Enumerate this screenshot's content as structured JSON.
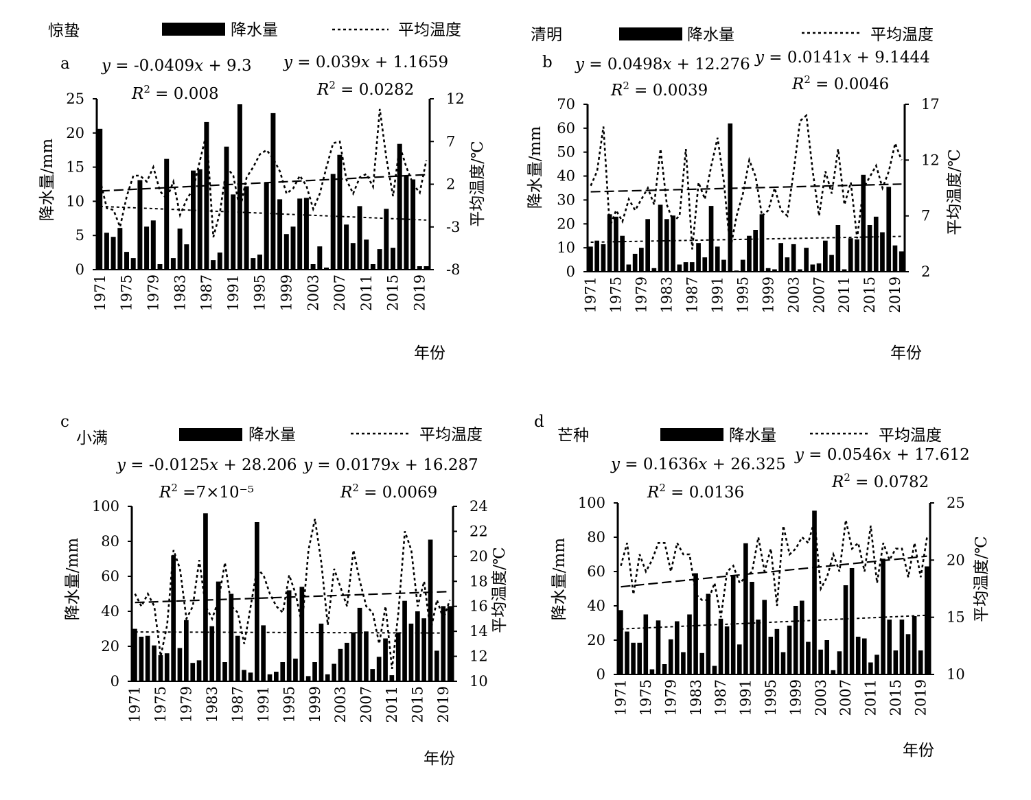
{
  "chart_data": [
    {
      "type": "bar+line",
      "panel_letter": "a",
      "title": "惊蛰",
      "legend": {
        "bar": "降水量",
        "line": "平均温度"
      },
      "xlabel": "年份",
      "ylabel_left": "降水量/mm",
      "ylabel_right": "平均温度/℃",
      "left_ticks": [
        "0",
        "5",
        "10",
        "15",
        "20",
        "25"
      ],
      "right_ticks": [
        "-8",
        "-3",
        "2",
        "7",
        "12"
      ],
      "x_ticks": [
        "1971",
        "1975",
        "1979",
        "1983",
        "1987",
        "1991",
        "1995",
        "1999",
        "2003",
        "2007",
        "2011",
        "2015",
        "2019"
      ],
      "equations": {
        "precip": {
          "line1": "y = -0.0409x + 9.3",
          "line2": "R² = 0.008"
        },
        "temp": {
          "line1": "y = 0.039x + 1.1659",
          "line2": "R² = 0.0282"
        }
      },
      "ylim_left": [
        0,
        25
      ],
      "ylim_right": [
        -8,
        12
      ],
      "years": [
        1971,
        2020
      ],
      "precip_trend": {
        "slope": -0.0409,
        "intercept": 9.3
      },
      "temp_trend": {
        "slope": 0.039,
        "intercept": 1.1659
      },
      "precipitation": [
        20.6,
        5.4,
        4.8,
        6.1,
        2.6,
        1.7,
        13.1,
        6.3,
        7.2,
        0.8,
        16.2,
        1.7,
        6.0,
        3.7,
        14.5,
        14.7,
        21.6,
        1.4,
        2.5,
        18.0,
        11.0,
        24.2,
        12.2,
        1.7,
        2.2,
        12.8,
        22.9,
        10.3,
        5.2,
        6.3,
        10.4,
        10.5,
        0.8,
        3.4,
        0.3,
        14.0,
        16.8,
        6.6,
        3.9,
        9.3,
        4.4,
        0.8,
        3.0,
        8.9,
        3.2,
        18.4,
        13.7,
        13.2,
        0.5,
        0.5
      ],
      "temperature": [
        2.5,
        -0.8,
        -1.0,
        -3.0,
        0.6,
        3.0,
        3.0,
        2.3,
        4.0,
        1.2,
        0.3,
        2.3,
        -1.6,
        0.2,
        1.5,
        4.8,
        8.0,
        -4.2,
        -1.3,
        4.0,
        3.0,
        -1.0,
        2.8,
        4.0,
        5.5,
        6.0,
        5.0,
        3.5,
        0.9,
        1.5,
        3.0,
        1.8,
        -0.9,
        0.9,
        4.0,
        6.8,
        7.0,
        2.5,
        0.9,
        2.8,
        3.2,
        1.7,
        10.8,
        5.0,
        0.6,
        6.5,
        4.0,
        2.0,
        1.0,
        4.8
      ]
    },
    {
      "type": "bar+line",
      "panel_letter": "b",
      "title": "清明",
      "legend": {
        "bar": "降水量",
        "line": "平均温度"
      },
      "xlabel": "年份",
      "ylabel_left": "降水量/mm",
      "ylabel_right": "平均温度/℃",
      "left_ticks": [
        "0",
        "10",
        "20",
        "30",
        "40",
        "50",
        "60",
        "70"
      ],
      "right_ticks": [
        "2",
        "7",
        "12",
        "17"
      ],
      "x_ticks": [
        "1971",
        "1975",
        "1979",
        "1983",
        "1987",
        "1991",
        "1995",
        "1999",
        "2003",
        "2007",
        "2011",
        "2015",
        "2019"
      ],
      "equations": {
        "precip": {
          "line1": "y = 0.0498x + 12.276",
          "line2": "R² = 0.0039"
        },
        "temp": {
          "line1": "y = 0.0141x + 9.1444",
          "line2": "R² = 0.0046"
        }
      },
      "ylim_left": [
        0,
        70
      ],
      "ylim_right": [
        2,
        17
      ],
      "years": [
        1971,
        2020
      ],
      "precip_trend": {
        "slope": 0.0498,
        "intercept": 12.276
      },
      "temp_trend": {
        "slope": 0.0141,
        "intercept": 9.1444
      },
      "precipitation": [
        10.5,
        13.0,
        11.5,
        24.0,
        23.0,
        15.0,
        3.0,
        7.5,
        10.0,
        22.0,
        1.5,
        28.0,
        22.0,
        23.5,
        3.0,
        4.0,
        4.0,
        12.0,
        6.0,
        27.5,
        10.5,
        5.0,
        62.0,
        0.5,
        5.0,
        15.0,
        17.5,
        24.0,
        1.5,
        1.0,
        12.0,
        6.0,
        11.5,
        1.0,
        10.0,
        3.0,
        3.5,
        13.0,
        7.0,
        19.5,
        1.0,
        14.0,
        13.5,
        40.5,
        19.5,
        23.0,
        16.5,
        35.5,
        11.0,
        8.5
      ],
      "temperature": [
        9.7,
        11.0,
        15.0,
        6.0,
        7.5,
        6.5,
        8.5,
        7.5,
        8.5,
        9.5,
        8.0,
        13.0,
        8.0,
        6.5,
        7.0,
        13.0,
        4.0,
        10.0,
        8.5,
        11.5,
        14.0,
        10.0,
        4.0,
        7.0,
        9.0,
        12.0,
        10.5,
        7.0,
        7.5,
        9.5,
        7.5,
        7.0,
        11.0,
        15.5,
        16.0,
        11.0,
        7.0,
        11.0,
        9.0,
        13.0,
        8.0,
        10.0,
        5.0,
        9.5,
        10.5,
        11.5,
        9.5,
        11.0,
        13.5,
        12.0
      ]
    },
    {
      "type": "bar+line",
      "panel_letter": "c",
      "title": "小满",
      "legend": {
        "bar": "降水量",
        "line": "平均温度"
      },
      "xlabel": "年份",
      "ylabel_left": "降水量/mm",
      "ylabel_right": "平均温度/℃",
      "left_ticks": [
        "0",
        "20",
        "40",
        "60",
        "80",
        "100"
      ],
      "right_ticks": [
        "10",
        "12",
        "14",
        "16",
        "18",
        "20",
        "22",
        "24"
      ],
      "x_ticks": [
        "1971",
        "1975",
        "1979",
        "1983",
        "1987",
        "1991",
        "1995",
        "1999",
        "2003",
        "2007",
        "2011",
        "2015",
        "2019"
      ],
      "equations": {
        "precip": {
          "line1": "y = -0.0125x + 28.206",
          "line2": "R² =7×10⁻⁵"
        },
        "temp": {
          "line1": "y = 0.0179x + 16.287",
          "line2": "R² = 0.0069"
        }
      },
      "ylim_left": [
        0,
        100
      ],
      "ylim_right": [
        10,
        24
      ],
      "years": [
        1971,
        2020
      ],
      "precip_trend": {
        "slope": -0.0125,
        "intercept": 28.206
      },
      "temp_trend": {
        "slope": 0.0179,
        "intercept": 16.287
      },
      "precipitation": [
        30.0,
        25.5,
        26.0,
        20.5,
        15.0,
        16.0,
        72.0,
        19.0,
        35.0,
        10.5,
        12.0,
        96.0,
        31.5,
        57.0,
        11.0,
        50.0,
        26.0,
        6.5,
        5.0,
        91.0,
        32.0,
        4.0,
        5.5,
        11.0,
        52.0,
        13.0,
        54.0,
        3.0,
        11.0,
        33.0,
        4.0,
        10.0,
        18.5,
        22.0,
        28.0,
        42.0,
        28.5,
        7.0,
        14.0,
        24.5,
        3.5,
        28.0,
        46.0,
        33.0,
        40.0,
        36.0,
        81.0,
        17.5,
        43.0,
        43.0
      ],
      "temperature": [
        17.0,
        16.0,
        17.0,
        16.0,
        12.0,
        14.5,
        20.5,
        19.0,
        15.0,
        16.0,
        19.7,
        16.0,
        15.0,
        16.5,
        19.5,
        16.0,
        15.5,
        13.0,
        16.0,
        19.0,
        18.5,
        17.0,
        16.0,
        15.5,
        18.5,
        17.0,
        14.5,
        20.5,
        23.0,
        19.5,
        14.5,
        19.0,
        17.5,
        16.0,
        20.5,
        18.0,
        16.0,
        15.5,
        13.0,
        16.0,
        11.0,
        15.5,
        22.0,
        20.5,
        16.0,
        18.0,
        14.0,
        16.5,
        15.0,
        16.5
      ]
    },
    {
      "type": "bar+line",
      "panel_letter": "d",
      "title": "芒种",
      "legend": {
        "bar": "降水量",
        "line": "平均温度"
      },
      "xlabel": "年份",
      "ylabel_left": "降水量/mm",
      "ylabel_right": "平均温度/℃",
      "left_ticks": [
        "0",
        "20",
        "40",
        "60",
        "80",
        "100"
      ],
      "right_ticks": [
        "10",
        "15",
        "20",
        "25"
      ],
      "x_ticks": [
        "1971",
        "1975",
        "1979",
        "1983",
        "1987",
        "1991",
        "1995",
        "1999",
        "2003",
        "2007",
        "2011",
        "2015",
        "2019"
      ],
      "equations": {
        "precip": {
          "line1": "y = 0.1636x + 26.325",
          "line2": "R² = 0.0136"
        },
        "temp": {
          "line1": "y = 0.0546x + 17.612",
          "line2": "R² = 0.0782"
        }
      },
      "ylim_left": [
        0,
        100
      ],
      "ylim_right": [
        10,
        25
      ],
      "years": [
        1971,
        2020
      ],
      "precip_trend": {
        "slope": 0.1636,
        "intercept": 26.325
      },
      "temp_trend": {
        "slope": 0.0546,
        "intercept": 17.612
      },
      "precipitation": [
        37.5,
        25.0,
        18.5,
        18.5,
        35.0,
        3.0,
        31.5,
        6.0,
        20.5,
        31.0,
        13.0,
        35.0,
        59.0,
        12.5,
        47.0,
        5.0,
        32.5,
        28.0,
        58.0,
        17.5,
        76.5,
        54.0,
        32.0,
        43.5,
        22.0,
        26.5,
        13.0,
        28.5,
        40.0,
        43.0,
        19.0,
        95.5,
        14.5,
        20.0,
        2.5,
        13.5,
        52.0,
        62.0,
        22.0,
        21.0,
        7.0,
        11.5,
        67.5,
        32.0,
        14.0,
        32.0,
        23.5,
        34.0,
        14.0,
        63.0
      ],
      "temperature": [
        19.5,
        21.5,
        17.0,
        20.5,
        19.0,
        20.0,
        21.5,
        21.5,
        19.0,
        21.5,
        20.5,
        20.5,
        17.0,
        16.5,
        16.5,
        18.0,
        15.0,
        19.0,
        19.5,
        18.0,
        18.5,
        19.0,
        22.0,
        19.0,
        21.0,
        16.0,
        23.0,
        20.5,
        21.0,
        22.0,
        21.5,
        23.5,
        17.5,
        18.5,
        20.5,
        19.0,
        23.5,
        21.0,
        21.5,
        19.0,
        23.0,
        18.0,
        21.5,
        20.0,
        21.0,
        21.0,
        18.5,
        21.5,
        18.5,
        22.0
      ]
    }
  ]
}
